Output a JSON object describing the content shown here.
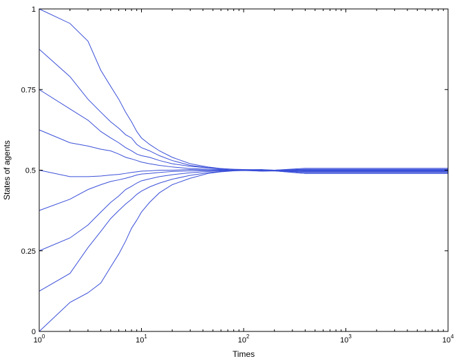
{
  "chart_data": {
    "type": "line",
    "title": "",
    "xlabel": "Times",
    "ylabel": "States of agents",
    "xscale": "log",
    "xlim": [
      1,
      10000
    ],
    "ylim": [
      0,
      1
    ],
    "grid": false,
    "legend": "none",
    "line_color": "#3a4fd8",
    "x_ticks": [
      {
        "base": "10",
        "exp": "0",
        "value": 1
      },
      {
        "base": "10",
        "exp": "1",
        "value": 10
      },
      {
        "base": "10",
        "exp": "2",
        "value": 100
      },
      {
        "base": "10",
        "exp": "3",
        "value": 1000
      },
      {
        "base": "10",
        "exp": "4",
        "value": 10000
      }
    ],
    "y_ticks": [
      {
        "label": "0",
        "value": 0
      },
      {
        "label": "0.25",
        "value": 0.25
      },
      {
        "label": "0.5",
        "value": 0.5
      },
      {
        "label": "0.75",
        "value": 0.75
      },
      {
        "label": "1",
        "value": 1
      }
    ],
    "series": [
      {
        "x": [
          1,
          2,
          3,
          4,
          5,
          6,
          7,
          8,
          9,
          10,
          12,
          15,
          20,
          30,
          45,
          60,
          80,
          100,
          150,
          200,
          400,
          10000
        ],
        "y": [
          1.0,
          0.955,
          0.9,
          0.81,
          0.76,
          0.72,
          0.68,
          0.65,
          0.62,
          0.6,
          0.58,
          0.56,
          0.54,
          0.52,
          0.51,
          0.505,
          0.503,
          0.502,
          0.501,
          0.5,
          0.506,
          0.506
        ]
      },
      {
        "x": [
          1,
          2,
          3,
          4,
          5,
          6,
          7,
          8,
          9,
          10,
          12,
          15,
          20,
          30,
          45,
          60,
          80,
          100,
          150,
          200,
          400,
          10000
        ],
        "y": [
          0.875,
          0.79,
          0.72,
          0.68,
          0.65,
          0.63,
          0.61,
          0.6,
          0.58,
          0.57,
          0.56,
          0.545,
          0.53,
          0.515,
          0.508,
          0.505,
          0.502,
          0.501,
          0.502,
          0.5,
          0.503,
          0.503
        ]
      },
      {
        "x": [
          1,
          2,
          3,
          4,
          5,
          6,
          7,
          8,
          9,
          10,
          12,
          15,
          20,
          30,
          45,
          60,
          80,
          100,
          150,
          200,
          400,
          10000
        ],
        "y": [
          0.75,
          0.69,
          0.655,
          0.62,
          0.6,
          0.585,
          0.57,
          0.56,
          0.55,
          0.545,
          0.54,
          0.53,
          0.52,
          0.512,
          0.507,
          0.504,
          0.502,
          0.5,
          0.498,
          0.5,
          0.501,
          0.501
        ]
      },
      {
        "x": [
          1,
          2,
          3,
          4,
          5,
          6,
          7,
          8,
          9,
          10,
          12,
          15,
          20,
          30,
          45,
          60,
          80,
          100,
          150,
          200,
          400,
          10000
        ],
        "y": [
          0.625,
          0.585,
          0.575,
          0.565,
          0.56,
          0.55,
          0.54,
          0.535,
          0.53,
          0.525,
          0.52,
          0.515,
          0.51,
          0.505,
          0.503,
          0.502,
          0.5,
          0.499,
          0.5,
          0.5,
          0.499,
          0.499
        ]
      },
      {
        "x": [
          1,
          2,
          3,
          4,
          5,
          6,
          7,
          8,
          9,
          10,
          12,
          15,
          20,
          30,
          45,
          60,
          80,
          100,
          150,
          200,
          400,
          10000
        ],
        "y": [
          0.5,
          0.48,
          0.48,
          0.482,
          0.485,
          0.487,
          0.49,
          0.493,
          0.495,
          0.497,
          0.498,
          0.5,
          0.5,
          0.502,
          0.5,
          0.5,
          0.499,
          0.5,
          0.501,
          0.499,
          0.497,
          0.497
        ]
      },
      {
        "x": [
          1,
          2,
          3,
          4,
          5,
          6,
          7,
          8,
          9,
          10,
          12,
          15,
          20,
          30,
          45,
          60,
          80,
          100,
          150,
          200,
          400,
          10000
        ],
        "y": [
          0.375,
          0.41,
          0.44,
          0.455,
          0.465,
          0.47,
          0.475,
          0.48,
          0.485,
          0.488,
          0.49,
          0.493,
          0.496,
          0.498,
          0.499,
          0.5,
          0.5,
          0.501,
          0.499,
          0.498,
          0.495,
          0.495
        ]
      },
      {
        "x": [
          1,
          2,
          3,
          4,
          5,
          6,
          7,
          8,
          9,
          10,
          12,
          15,
          20,
          30,
          45,
          60,
          80,
          100,
          150,
          200,
          400,
          10000
        ],
        "y": [
          0.25,
          0.29,
          0.33,
          0.37,
          0.4,
          0.42,
          0.44,
          0.45,
          0.46,
          0.467,
          0.473,
          0.48,
          0.486,
          0.492,
          0.496,
          0.498,
          0.5,
          0.5,
          0.498,
          0.499,
          0.493,
          0.493
        ]
      },
      {
        "x": [
          1,
          2,
          3,
          4,
          5,
          6,
          7,
          8,
          9,
          10,
          12,
          15,
          20,
          30,
          45,
          60,
          80,
          100,
          150,
          200,
          400,
          10000
        ],
        "y": [
          0.125,
          0.18,
          0.26,
          0.31,
          0.35,
          0.375,
          0.395,
          0.41,
          0.425,
          0.435,
          0.448,
          0.46,
          0.472,
          0.484,
          0.492,
          0.496,
          0.499,
          0.5,
          0.497,
          0.498,
          0.49,
          0.49
        ]
      },
      {
        "x": [
          1,
          2,
          3,
          4,
          5,
          6,
          7,
          8,
          9,
          10,
          12,
          15,
          20,
          30,
          45,
          60,
          80,
          100,
          150,
          200,
          400,
          10000
        ],
        "y": [
          0.0,
          0.09,
          0.12,
          0.15,
          0.2,
          0.24,
          0.28,
          0.32,
          0.345,
          0.37,
          0.4,
          0.43,
          0.455,
          0.475,
          0.49,
          0.495,
          0.498,
          0.499,
          0.497,
          0.498,
          0.49,
          0.49
        ]
      }
    ]
  }
}
